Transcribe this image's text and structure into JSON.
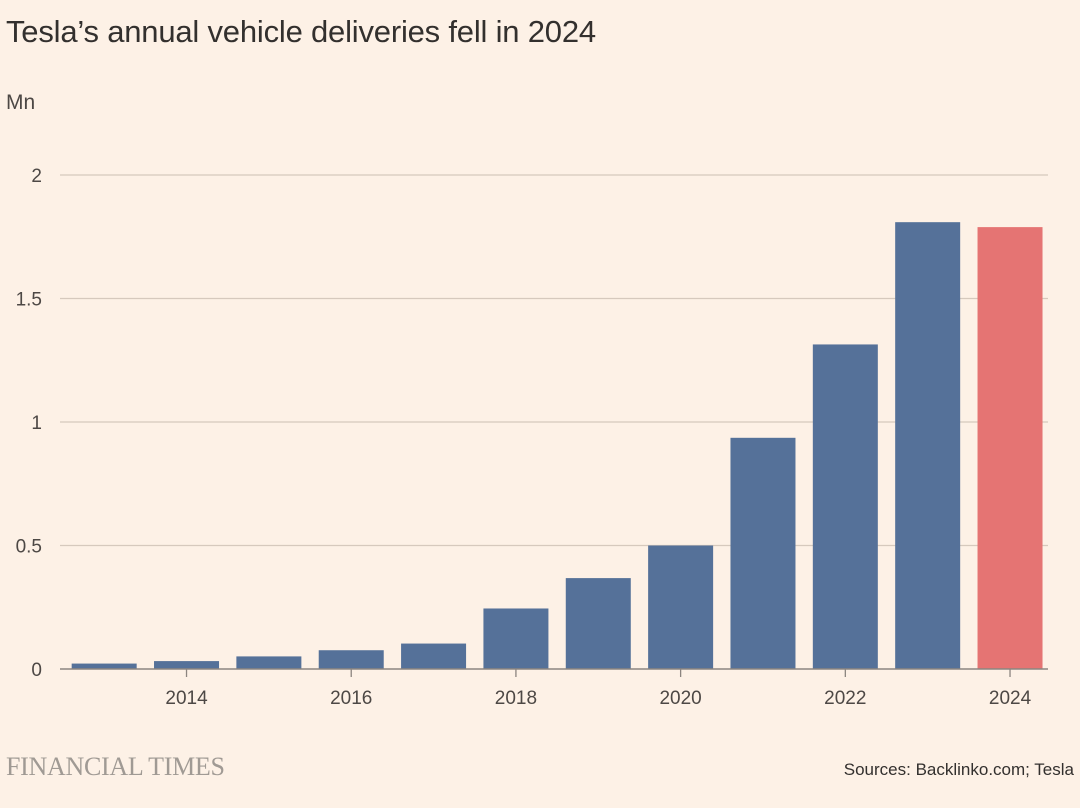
{
  "title": "Tesla’s annual vehicle deliveries fell in 2024",
  "unit_label": "Mn",
  "publisher": "FINANCIAL TIMES",
  "source": "Sources: Backlinko.com; Tesla",
  "colors": {
    "background": "#fdf1e6",
    "bar": "#557199",
    "highlight_bar": "#e57473",
    "gridline": "#d6c9bd",
    "axis": "#8c8580",
    "text": "#33302e"
  },
  "chart_data": {
    "type": "bar",
    "title": "Tesla’s annual vehicle deliveries fell in 2024",
    "ylabel": "Mn",
    "xlabel": "",
    "categories": [
      "2013",
      "2014",
      "2015",
      "2016",
      "2017",
      "2018",
      "2019",
      "2020",
      "2021",
      "2022",
      "2023",
      "2024"
    ],
    "values": [
      0.022,
      0.032,
      0.051,
      0.076,
      0.103,
      0.245,
      0.368,
      0.5,
      0.936,
      1.314,
      1.809,
      1.789
    ],
    "highlight": "2024",
    "ylim": [
      0,
      2
    ],
    "yticks": [
      0,
      0.5,
      1,
      1.5,
      2
    ],
    "ytick_labels": [
      "0",
      "0.5",
      "1",
      "1.5",
      "2"
    ],
    "xtick_labels": [
      "2014",
      "2016",
      "2018",
      "2020",
      "2022",
      "2024"
    ],
    "grid": true,
    "legend": "none"
  }
}
